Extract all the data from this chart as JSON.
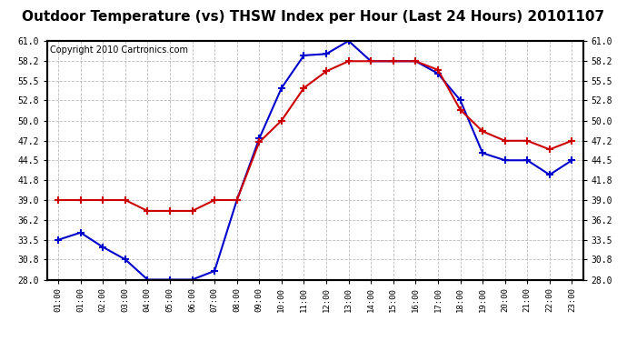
{
  "title": "Outdoor Temperature (vs) THSW Index per Hour (Last 24 Hours) 20101107",
  "copyright": "Copyright 2010 Cartronics.com",
  "x_labels": [
    "01:00",
    "01:00",
    "02:00",
    "03:00",
    "04:00",
    "05:00",
    "06:00",
    "07:00",
    "08:00",
    "09:00",
    "10:00",
    "11:00",
    "12:00",
    "13:00",
    "14:00",
    "15:00",
    "16:00",
    "17:00",
    "18:00",
    "19:00",
    "20:00",
    "21:00",
    "22:00",
    "23:00"
  ],
  "thsw_data": [
    33.5,
    34.5,
    32.5,
    30.8,
    28.0,
    28.0,
    28.0,
    29.2,
    39.0,
    47.5,
    54.5,
    59.0,
    59.2,
    61.0,
    58.2,
    58.2,
    58.2,
    56.5,
    52.8,
    45.5,
    44.5,
    44.5,
    42.5,
    44.5
  ],
  "outdoor_data": [
    39.0,
    39.0,
    39.0,
    39.0,
    37.5,
    37.5,
    37.5,
    39.0,
    39.0,
    47.0,
    50.0,
    54.5,
    56.8,
    58.2,
    58.2,
    58.2,
    58.2,
    57.0,
    51.5,
    48.5,
    47.2,
    47.2,
    46.0,
    47.2
  ],
  "thsw_color": "#0000cc",
  "outdoor_color": "#cc0000",
  "bg_color": "#ffffff",
  "plot_bg_color": "#ffffff",
  "grid_color": "#bbbbbb",
  "ylim": [
    28.0,
    61.0
  ],
  "yticks": [
    28.0,
    30.8,
    33.5,
    36.2,
    39.0,
    41.8,
    44.5,
    47.2,
    50.0,
    52.8,
    55.5,
    58.2,
    61.0
  ],
  "title_fontsize": 11,
  "copyright_fontsize": 7
}
